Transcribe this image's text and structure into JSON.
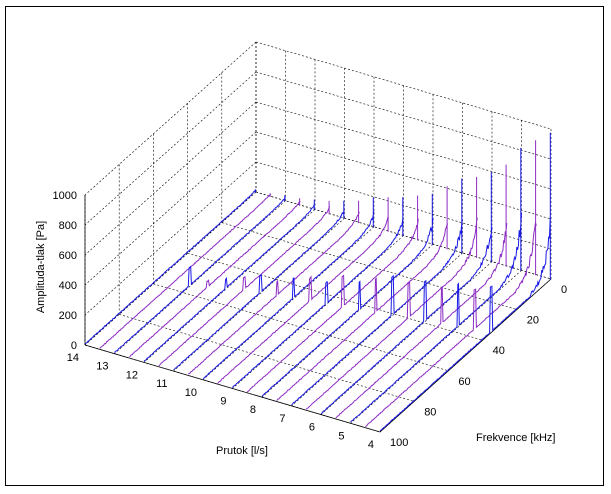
{
  "chart_data": {
    "type": "waterfall-3d",
    "xlabel": "Frekvence [kHz]",
    "ylabel": "Prutok [l/s]",
    "zlabel": "Amplituda-tlak [Pa]",
    "xlim": [
      0,
      100
    ],
    "ylim": [
      4,
      14
    ],
    "zlim": [
      0,
      1000
    ],
    "x_ticks": [
      0,
      20,
      40,
      60,
      80,
      100
    ],
    "y_ticks": [
      4,
      5,
      6,
      7,
      8,
      9,
      10,
      11,
      12,
      13,
      14
    ],
    "z_ticks": [
      0,
      200,
      400,
      600,
      800,
      1000
    ],
    "grid": true,
    "colors": {
      "primary": "#1a1ae6",
      "secondary": "#8c2bc4"
    },
    "series": [
      {
        "flow": 14.0,
        "color": "#1a1ae6",
        "peaks": [
          [
            0.5,
            20
          ],
          [
            60,
            0
          ]
        ]
      },
      {
        "flow": 13.5,
        "color": "#8c2bc4",
        "peaks": [
          [
            0.5,
            25
          ],
          [
            58,
            0
          ]
        ]
      },
      {
        "flow": 13.0,
        "color": "#1a1ae6",
        "peaks": [
          [
            0.5,
            40
          ],
          [
            56,
            120
          ]
        ]
      },
      {
        "flow": 12.5,
        "color": "#8c2bc4",
        "peaks": [
          [
            0.5,
            50
          ],
          [
            54,
            40
          ]
        ]
      },
      {
        "flow": 12.0,
        "color": "#1a1ae6",
        "peaks": [
          [
            0.5,
            70
          ],
          [
            52,
            60
          ]
        ]
      },
      {
        "flow": 11.5,
        "color": "#8c2bc4",
        "peaks": [
          [
            0.5,
            90
          ],
          [
            50,
            80
          ]
        ]
      },
      {
        "flow": 11.0,
        "color": "#1a1ae6",
        "peaks": [
          [
            0.5,
            120
          ],
          [
            49,
            110
          ]
        ]
      },
      {
        "flow": 10.5,
        "color": "#8c2bc4",
        "peaks": [
          [
            0.5,
            150
          ],
          [
            48,
            90
          ]
        ]
      },
      {
        "flow": 10.0,
        "color": "#1a1ae6",
        "peaks": [
          [
            0.5,
            200
          ],
          [
            47,
            130
          ]
        ]
      },
      {
        "flow": 9.5,
        "color": "#8c2bc4",
        "peaks": [
          [
            0.5,
            230
          ],
          [
            46,
            150
          ]
        ]
      },
      {
        "flow": 9.0,
        "color": "#1a1ae6",
        "peaks": [
          [
            0.5,
            260
          ],
          [
            45,
            140
          ]
        ]
      },
      {
        "flow": 8.5,
        "color": "#8c2bc4",
        "peaks": [
          [
            0.5,
            300
          ],
          [
            44,
            200
          ]
        ]
      },
      {
        "flow": 8.0,
        "color": "#1a1ae6",
        "peaks": [
          [
            0.5,
            340
          ],
          [
            43,
            180
          ]
        ]
      },
      {
        "flow": 7.5,
        "color": "#8c2bc4",
        "peaks": [
          [
            0.5,
            420
          ],
          [
            42,
            220
          ]
        ]
      },
      {
        "flow": 7.0,
        "color": "#1a1ae6",
        "peaks": [
          [
            0.5,
            500
          ],
          [
            41,
            250
          ]
        ]
      },
      {
        "flow": 6.5,
        "color": "#8c2bc4",
        "peaks": [
          [
            0.5,
            540
          ],
          [
            40,
            230
          ]
        ]
      },
      {
        "flow": 6.0,
        "color": "#1a1ae6",
        "peaks": [
          [
            0.5,
            600
          ],
          [
            39,
            260
          ]
        ]
      },
      {
        "flow": 5.5,
        "color": "#8c2bc4",
        "peaks": [
          [
            0.5,
            680
          ],
          [
            38,
            240
          ]
        ]
      },
      {
        "flow": 5.0,
        "color": "#1a1ae6",
        "peaks": [
          [
            0.5,
            820
          ],
          [
            37,
            280
          ]
        ]
      },
      {
        "flow": 4.5,
        "color": "#8c2bc4",
        "peaks": [
          [
            0.5,
            900
          ],
          [
            36,
            260
          ]
        ]
      },
      {
        "flow": 4.0,
        "color": "#1a1ae6",
        "peaks": [
          [
            0.5,
            980
          ],
          [
            35,
            300
          ]
        ]
      }
    ]
  }
}
